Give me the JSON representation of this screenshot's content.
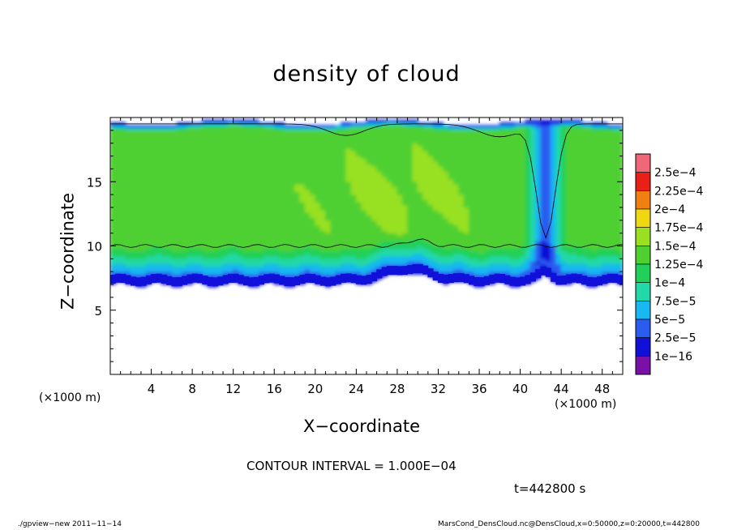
{
  "chart_data": {
    "type": "heatmap",
    "title": "density of cloud",
    "xlabel": "X−coordinate",
    "ylabel": "Z−coordinate",
    "x_unit_left": "(×1000 m)",
    "x_unit_right": "(×1000 m)",
    "xlim": [
      0,
      50
    ],
    "ylim": [
      0,
      20
    ],
    "x_ticks": [
      4,
      8,
      12,
      16,
      20,
      24,
      28,
      32,
      36,
      40,
      44,
      48
    ],
    "y_ticks": [
      5,
      10,
      15
    ],
    "colorbar": {
      "labels": [
        "2.5e−4",
        "2.25e−4",
        "2e−4",
        "1.75e−4",
        "1.5e−4",
        "1.25e−4",
        "1e−4",
        "7.5e−5",
        "5e−5",
        "2.5e−5",
        "1e−16"
      ],
      "levels": [
        1e-16,
        2.5e-05,
        5e-05,
        7.5e-05,
        0.0001,
        0.000125,
        0.00015,
        0.000175,
        0.0002,
        0.000225,
        0.00025
      ],
      "colors": [
        "#7a10a8",
        "#1010d8",
        "#2a5cf0",
        "#18b8f0",
        "#20d8a8",
        "#20d058",
        "#50d030",
        "#98e020",
        "#f0d810",
        "#f08010",
        "#e82018",
        "#f06878"
      ]
    },
    "field": {
      "cloud_base_z": 7.0,
      "cloud_top_z": 19.6,
      "contour_level": 0.0001,
      "contour_lower_z": 10.0,
      "contour_upper_z": 19.5,
      "downdraft_x": 42.5,
      "core_value": 0.00015
    }
  },
  "annotations": {
    "contour_interval": "CONTOUR INTERVAL = 1.000E−04",
    "time": "t=442800 s"
  },
  "footer": {
    "left": "./gpview−new  2011−11−14",
    "right": "MarsCond_DensCloud.nc@DensCloud,x=0:50000,z=0:20000,t=442800"
  }
}
